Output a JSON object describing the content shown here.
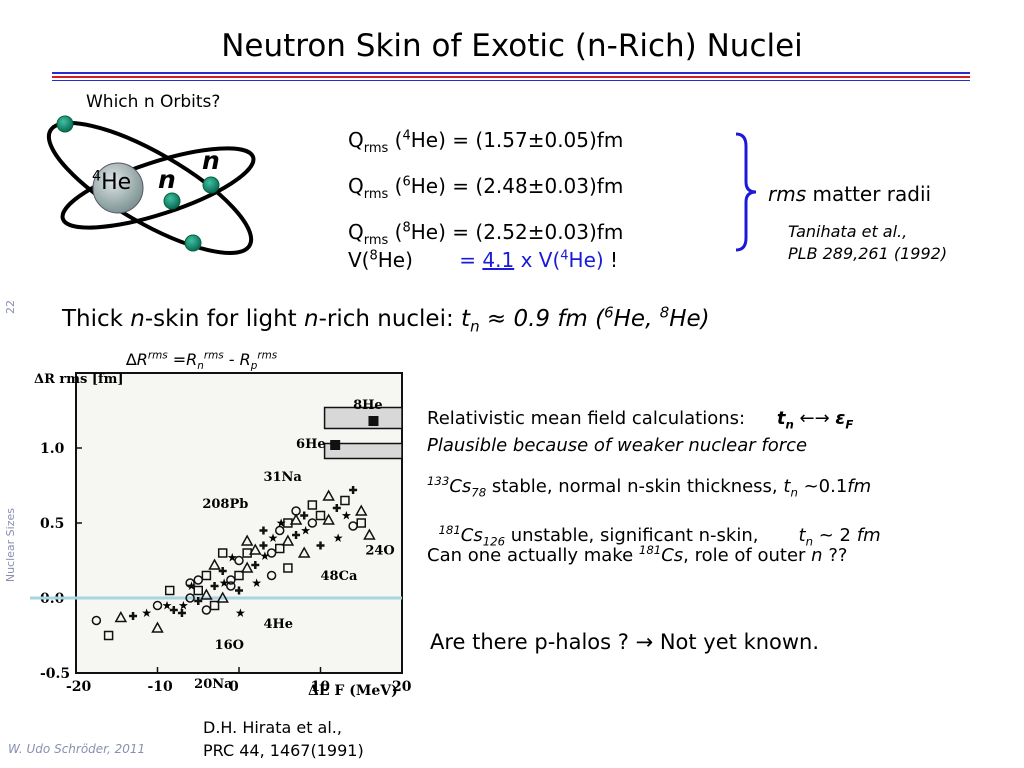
{
  "slide": {
    "title": "Neutron Skin of Exotic (n-Rich) Nuclei",
    "slide_number": "22",
    "section": "Nuclear Sizes",
    "footer": "W. Udo Schröder, 2011"
  },
  "atom": {
    "question": "Which n Orbits?",
    "core_mass": "4",
    "core_symbol": "He",
    "neutron_label_1": "n",
    "neutron_label_2": "n"
  },
  "radii": {
    "q_label": "Q",
    "q_sub": "rms",
    "q1_mass": "4",
    "q1_rest": "He) = (1.57±0.05)fm",
    "q2_mass": "6",
    "q2_rest": "He) = (2.48±0.03)fm",
    "q3_mass": "8",
    "q3_rest": "He) = (2.52±0.03)fm",
    "v_left_pre": "V(",
    "v_left_mass": "8",
    "v_left_post": "He)",
    "v_eq": "= ",
    "v_factor": "4.1",
    "v_mid": " x V(",
    "v_right_mass": "4",
    "v_right_post": "He)",
    "v_bang": " !",
    "bracket_label_it": "rms",
    "bracket_label": " matter radii",
    "ref_line1": "Tanihata et al.,",
    "ref_line2": "PLB 289,261 (1992)"
  },
  "thick": {
    "p1": "Thick ",
    "n1": "n",
    "p2": "-skin for light ",
    "n2": "n",
    "p3": "-rich nuclei: ",
    "t": "t",
    "tsub": "n",
    "approx": " ≈ 0.9 fm (",
    "m6": "6",
    "he6": "He, ",
    "m8": "8",
    "he8": "He)"
  },
  "figure_caption": {
    "delta": "∆R",
    "rms1": "rms",
    "eq": " =R",
    "nsub": "n",
    "rms2": "rms",
    "minus": " - R",
    "psub": "p",
    "rms3": "rms"
  },
  "figure_ref": {
    "line1": "D.H. Hirata et al.,",
    "line2": "PRC 44, 1467(1991)"
  },
  "right_text": {
    "rmf": "Relativistic mean field calculations:",
    "tn": "t",
    "tn_sub": "n",
    "arrow": " ←→ ",
    "eps": "ε",
    "eps_sub": "F",
    "plausible": "Plausible because of weaker nuclear force",
    "cs133_mass": "133",
    "cs": "Cs",
    "cs133_sub": "78",
    "cs133_text": "  stable, normal n-skin thickness, ",
    "cs133_t": "t",
    "cs133_tn": "n",
    "cs133_val_pre": " ~0.1",
    "cs133_val_it": "fm",
    "cs181_mass": "181",
    "cs181_sub": "126",
    "cs181_text": " unstable, significant n-skin,       ",
    "cs181_t": "t",
    "cs181_tn": "n",
    "cs181_val_pre": " ~ 2 ",
    "cs181_val_it": "fm",
    "question1_pre": "Can one actually make ",
    "q_mass": "181",
    "q_cs": "Cs",
    "question1_post": ", role of outer ",
    "q_n": "n",
    "question1_end": " ??",
    "phalo": "Are there p-halos ?  → Not yet known."
  },
  "chart_data": {
    "type": "scatter",
    "title": "",
    "ylabel": "ΔR rms [fm]",
    "xlabel": "ΔE F (MeV)",
    "xlim": [
      -20,
      20
    ],
    "ylim": [
      -0.5,
      1.5
    ],
    "x_ticks": [
      "-20",
      "-10",
      "0",
      "10",
      "20"
    ],
    "y_ticks": [
      "1.0",
      "0.5",
      "0.0",
      "-0.5"
    ],
    "labels": [
      {
        "text": "8He",
        "x": 14,
        "y": 1.26
      },
      {
        "text": "6He",
        "x": 7,
        "y": 1.0
      },
      {
        "text": "31Na",
        "x": 3,
        "y": 0.78
      },
      {
        "text": "208Pb",
        "x": -4.5,
        "y": 0.6
      },
      {
        "text": "24O",
        "x": 15.5,
        "y": 0.29
      },
      {
        "text": "48Ca",
        "x": 10,
        "y": 0.12
      },
      {
        "text": "4He",
        "x": 3,
        "y": -0.2
      },
      {
        "text": "16O",
        "x": -3,
        "y": -0.34
      },
      {
        "text": "20Na",
        "x": -5.5,
        "y": -0.6
      }
    ],
    "points": [
      [
        -17.5,
        -0.15
      ],
      [
        -16,
        -0.25
      ],
      [
        -14.5,
        -0.13
      ],
      [
        -13,
        -0.12
      ],
      [
        -11.5,
        -0.1
      ],
      [
        -10,
        -0.05
      ],
      [
        -8.5,
        0.05
      ],
      [
        -10,
        -0.2
      ],
      [
        -7,
        -0.1
      ],
      [
        -6,
        0.08
      ],
      [
        -5,
        0.12
      ],
      [
        -4,
        0.15
      ],
      [
        -3,
        0.22
      ],
      [
        -2,
        0.18
      ],
      [
        -1,
        0.27
      ],
      [
        0,
        0.25
      ],
      [
        1,
        0.3
      ],
      [
        2,
        0.32
      ],
      [
        3,
        0.35
      ],
      [
        4,
        0.4
      ],
      [
        5,
        0.45
      ],
      [
        6,
        0.5
      ],
      [
        7,
        0.52
      ],
      [
        8,
        0.55
      ],
      [
        -7,
        -0.05
      ],
      [
        -6,
        0.0
      ],
      [
        -5,
        0.05
      ],
      [
        -4,
        0.02
      ],
      [
        -3,
        0.08
      ],
      [
        -2,
        0.1
      ],
      [
        -1,
        0.12
      ],
      [
        0,
        0.15
      ],
      [
        1,
        0.2
      ],
      [
        2,
        0.22
      ],
      [
        3,
        0.28
      ],
      [
        4,
        0.3
      ],
      [
        5,
        0.33
      ],
      [
        6,
        0.38
      ],
      [
        7,
        0.42
      ],
      [
        8,
        0.45
      ],
      [
        9,
        0.5
      ],
      [
        10,
        0.55
      ],
      [
        11,
        0.52
      ],
      [
        12,
        0.6
      ],
      [
        13,
        0.55
      ],
      [
        14,
        0.48
      ],
      [
        15,
        0.5
      ],
      [
        16,
        0.42
      ],
      [
        -8,
        -0.08
      ],
      [
        -9,
        -0.05
      ],
      [
        -4,
        -0.08
      ],
      [
        -3,
        -0.05
      ],
      [
        -2,
        0.0
      ],
      [
        0,
        0.05
      ],
      [
        2,
        0.1
      ],
      [
        4,
        0.15
      ],
      [
        6,
        0.2
      ],
      [
        8,
        0.3
      ],
      [
        10,
        0.35
      ],
      [
        12,
        0.4
      ],
      [
        -6,
        0.1
      ],
      [
        -2,
        0.3
      ],
      [
        1,
        0.38
      ],
      [
        3,
        0.45
      ],
      [
        5,
        0.5
      ],
      [
        7,
        0.58
      ],
      [
        9,
        0.62
      ],
      [
        11,
        0.68
      ],
      [
        -5,
        -0.02
      ],
      [
        0,
        -0.1
      ],
      [
        -1,
        0.08
      ],
      [
        13,
        0.65
      ],
      [
        15,
        0.58
      ],
      [
        14,
        0.72
      ]
    ],
    "bands": [
      {
        "x0": 10.5,
        "x1": 20,
        "y0": 1.13,
        "y1": 1.27
      },
      {
        "x0": 10.5,
        "x1": 20,
        "y0": 0.93,
        "y1": 1.03
      }
    ],
    "reference_line_y": 0.0
  }
}
